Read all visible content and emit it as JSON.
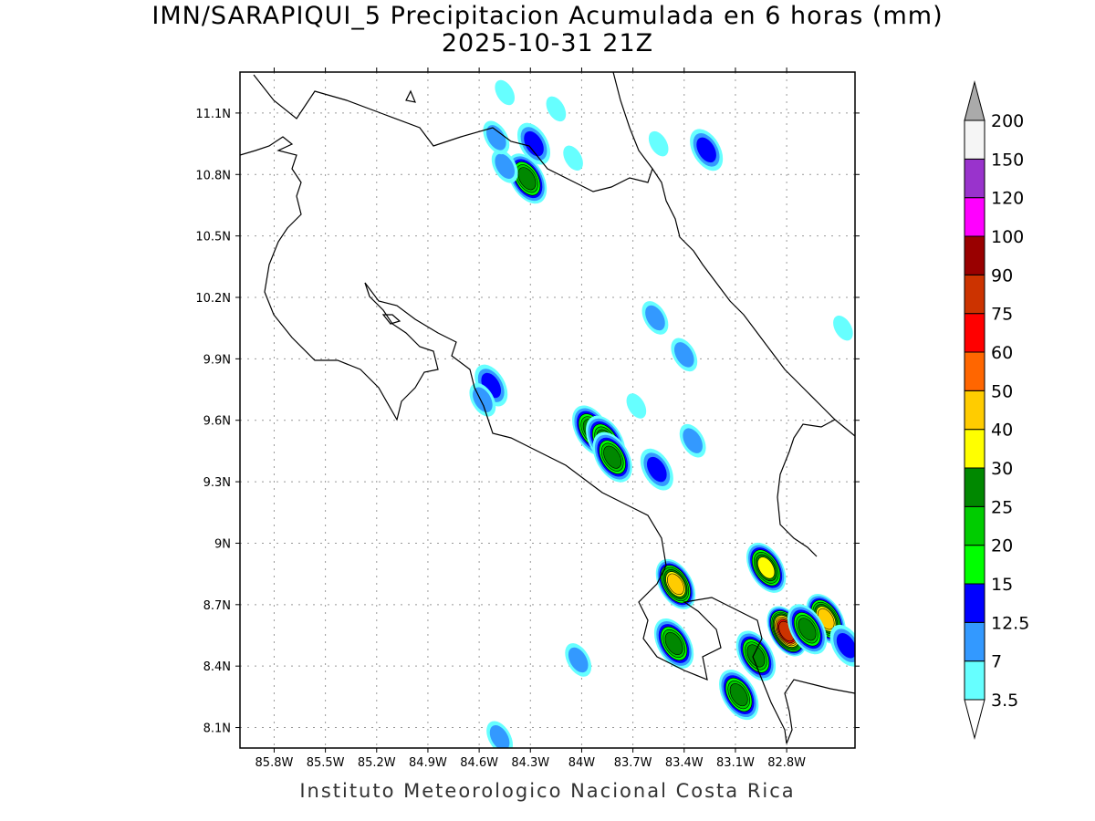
{
  "title": "IMN/SARAPIQUI_5 Precipitacion Acumulada en 6 horas (mm)",
  "subtitle": "2025-10-31 21Z",
  "footer": "Instituto Meteorologico Nacional Costa Rica",
  "map": {
    "lon_range": [
      -86.0,
      -82.4
    ],
    "lat_range": [
      8.0,
      11.3
    ],
    "x_ticks": [
      {
        "value": -85.8,
        "label": "85.8W"
      },
      {
        "value": -85.5,
        "label": "85.5W"
      },
      {
        "value": -85.2,
        "label": "85.2W"
      },
      {
        "value": -84.9,
        "label": "84.9W"
      },
      {
        "value": -84.6,
        "label": "84.6W"
      },
      {
        "value": -84.3,
        "label": "84.3W"
      },
      {
        "value": -84.0,
        "label": "84W"
      },
      {
        "value": -83.7,
        "label": "83.7W"
      },
      {
        "value": -83.4,
        "label": "83.4W"
      },
      {
        "value": -83.1,
        "label": "83.1W"
      },
      {
        "value": -82.8,
        "label": "82.8W"
      }
    ],
    "y_ticks": [
      {
        "value": 8.1,
        "label": "8.1N"
      },
      {
        "value": 8.4,
        "label": "8.4N"
      },
      {
        "value": 8.7,
        "label": "8.7N"
      },
      {
        "value": 9.0,
        "label": "9N"
      },
      {
        "value": 9.3,
        "label": "9.3N"
      },
      {
        "value": 9.6,
        "label": "9.6N"
      },
      {
        "value": 9.9,
        "label": "9.9N"
      },
      {
        "value": 10.2,
        "label": "10.2N"
      },
      {
        "value": 10.5,
        "label": "10.5N"
      },
      {
        "value": 10.8,
        "label": "10.8N"
      },
      {
        "value": 11.1,
        "label": "11.1N"
      }
    ],
    "grid": true
  },
  "colorbar": {
    "levels": [
      {
        "label": "3.5",
        "color": "#ffffff"
      },
      {
        "label": "7",
        "color": "#66ffff"
      },
      {
        "label": "12.5",
        "color": "#3399ff"
      },
      {
        "label": "15",
        "color": "#0000ff"
      },
      {
        "label": "20",
        "color": "#00ff00"
      },
      {
        "label": "25",
        "color": "#00cc00"
      },
      {
        "label": "30",
        "color": "#008800"
      },
      {
        "label": "40",
        "color": "#ffff00"
      },
      {
        "label": "50",
        "color": "#ffcc00"
      },
      {
        "label": "60",
        "color": "#ff6600"
      },
      {
        "label": "75",
        "color": "#ff0000"
      },
      {
        "label": "90",
        "color": "#cc3300"
      },
      {
        "label": "100",
        "color": "#990000"
      },
      {
        "label": "120",
        "color": "#ff00ff"
      },
      {
        "label": "150",
        "color": "#9933cc"
      },
      {
        "label": "200",
        "color": "#f5f5f5"
      }
    ],
    "over_color": "#aaaaaa",
    "under_color": "#ffffff"
  },
  "precip_cells": [
    {
      "lon": -84.32,
      "lat": 10.78,
      "level": 6
    },
    {
      "lon": -84.45,
      "lat": 10.84,
      "level": 2
    },
    {
      "lon": -84.28,
      "lat": 10.95,
      "level": 3
    },
    {
      "lon": -84.5,
      "lat": 10.98,
      "level": 2
    },
    {
      "lon": -84.05,
      "lat": 10.88,
      "level": 1
    },
    {
      "lon": -83.27,
      "lat": 10.92,
      "level": 3
    },
    {
      "lon": -83.55,
      "lat": 10.95,
      "level": 1
    },
    {
      "lon": -84.15,
      "lat": 11.12,
      "level": 1
    },
    {
      "lon": -84.45,
      "lat": 11.2,
      "level": 1
    },
    {
      "lon": -83.57,
      "lat": 10.1,
      "level": 2
    },
    {
      "lon": -83.4,
      "lat": 9.92,
      "level": 2
    },
    {
      "lon": -84.53,
      "lat": 9.77,
      "level": 3
    },
    {
      "lon": -84.58,
      "lat": 9.7,
      "level": 2
    },
    {
      "lon": -83.94,
      "lat": 9.55,
      "level": 6
    },
    {
      "lon": -83.86,
      "lat": 9.5,
      "level": 6
    },
    {
      "lon": -83.82,
      "lat": 9.42,
      "level": 6
    },
    {
      "lon": -83.56,
      "lat": 9.36,
      "level": 3
    },
    {
      "lon": -83.68,
      "lat": 9.67,
      "level": 1
    },
    {
      "lon": -83.35,
      "lat": 9.5,
      "level": 2
    },
    {
      "lon": -83.45,
      "lat": 8.8,
      "level": 8
    },
    {
      "lon": -83.46,
      "lat": 8.51,
      "level": 6
    },
    {
      "lon": -82.92,
      "lat": 8.88,
      "level": 7
    },
    {
      "lon": -82.8,
      "lat": 8.57,
      "level": 11
    },
    {
      "lon": -82.57,
      "lat": 8.63,
      "level": 8
    },
    {
      "lon": -82.68,
      "lat": 8.58,
      "level": 6
    },
    {
      "lon": -82.98,
      "lat": 8.45,
      "level": 6
    },
    {
      "lon": -83.08,
      "lat": 8.26,
      "level": 6
    },
    {
      "lon": -84.02,
      "lat": 8.43,
      "level": 2
    },
    {
      "lon": -84.48,
      "lat": 8.05,
      "level": 2
    },
    {
      "lon": -82.47,
      "lat": 10.05,
      "level": 1
    },
    {
      "lon": -82.45,
      "lat": 8.5,
      "level": 3
    }
  ]
}
